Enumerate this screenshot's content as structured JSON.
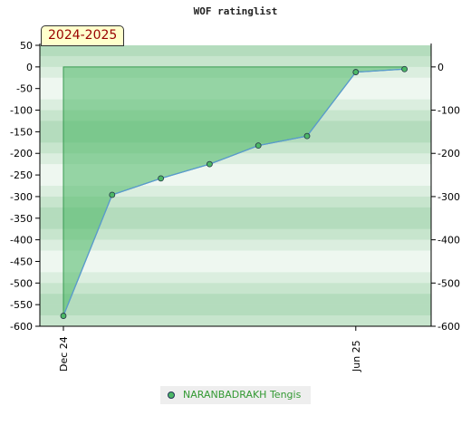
{
  "chart_data": {
    "type": "area",
    "title": "WOF ratinglist",
    "annotation": "2024-2025",
    "x_ticks": [
      "Dec 24",
      "Jun 25"
    ],
    "y_left_ticks": [
      50,
      0,
      -50,
      -100,
      -150,
      -200,
      -250,
      -300,
      -350,
      -400,
      -450,
      -500,
      -550,
      -600
    ],
    "y_right_ticks": [
      0,
      -100,
      -200,
      -300,
      -400,
      -500,
      -600
    ],
    "ylim": [
      -600,
      50
    ],
    "series": [
      {
        "name": "NARANBADRAKH Tengis",
        "color": "#4db866",
        "x": [
          "2024-12",
          "2025-01",
          "2025-02",
          "2025-03",
          "2025-04",
          "2025-05",
          "2025-06",
          "2025-07"
        ],
        "values": [
          -576,
          -296,
          -258,
          -225,
          -182,
          -160,
          -12,
          -5
        ]
      }
    ],
    "legend_placement": "bottom-center"
  }
}
